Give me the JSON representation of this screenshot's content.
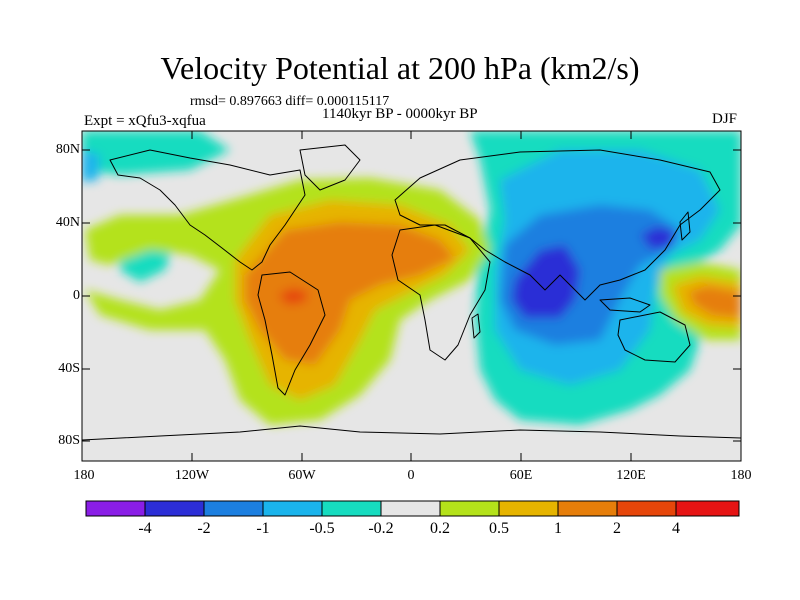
{
  "title": "Velocity Potential at 200 hPa (km2/s)",
  "stats": "rmsd= 0.897663 diff= 0.000115117",
  "period": "1140kyr BP - 0000kyr BP",
  "experiment": "Expt = xQfu3-xqfua",
  "season": "DJF",
  "map": {
    "y_axis_labels": [
      "80N",
      "40N",
      "0",
      "40S",
      "80S"
    ],
    "x_axis_labels": [
      "180",
      "120W",
      "60W",
      "0",
      "60E",
      "120E",
      "180"
    ]
  },
  "colorbar": {
    "labels": [
      "-4",
      "-2",
      "-1",
      "-0.5",
      "-0.2",
      "0.2",
      "0.5",
      "1",
      "2",
      "4"
    ],
    "colors": [
      "#8a1ee6",
      "#2c2ed6",
      "#1c7fe0",
      "#1ab4ec",
      "#16dcc0",
      "#e6e6e6",
      "#b4e21a",
      "#e6b400",
      "#e67e0a",
      "#e6460a",
      "#e61414"
    ]
  }
}
